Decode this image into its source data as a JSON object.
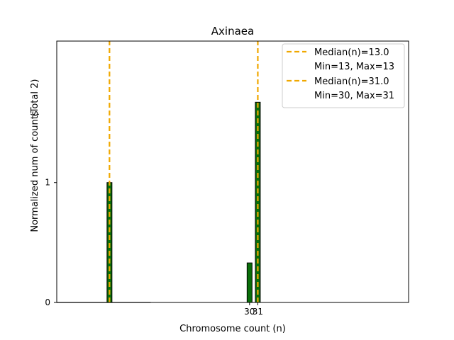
{
  "chart_data": {
    "type": "bar",
    "title": "Axinaea",
    "xlabel": "Chromosome count (n)",
    "ylabel": "Normalized num of counts",
    "ylabel_note": "(Total 2)",
    "xlim": [
      6.6,
      49.3
    ],
    "ylim": [
      0,
      2.18
    ],
    "yticks": [
      {
        "value": 0,
        "label": "0"
      },
      {
        "value": 1,
        "label": "1"
      }
    ],
    "xticks": [
      {
        "value": 30,
        "label": "30"
      },
      {
        "value": 31,
        "label": "31"
      }
    ],
    "baseline": {
      "from": 6.6,
      "to": 18.0
    },
    "bars": [
      {
        "x": 13,
        "value": 1.0
      },
      {
        "x": 30,
        "value": 0.33
      },
      {
        "x": 31,
        "value": 1.67
      }
    ],
    "bar_width": 0.6,
    "medians": [
      13.0,
      31.0
    ],
    "legend": [
      {
        "label": "Median(n)=13.0",
        "sub": "Min=13, Max=13"
      },
      {
        "label": "Median(n)=31.0",
        "sub": "Min=30, Max=31"
      }
    ],
    "legend_position": "top-right",
    "colors": {
      "bar": "#0a6e0a",
      "bar_edge": "#000000",
      "median": "#f0a800"
    }
  }
}
